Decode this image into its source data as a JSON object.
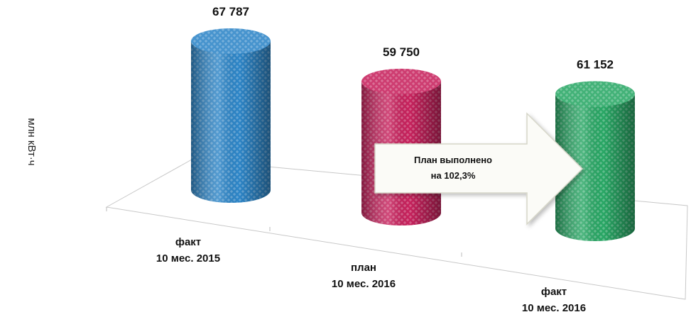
{
  "chart_data": {
    "type": "bar",
    "style": "3d-cylinder",
    "ylabel": "млн кВт·ч",
    "categories": [
      [
        "факт",
        "10 мес.  2015"
      ],
      [
        "план",
        "10 мес.  2016"
      ],
      [
        "факт",
        "10 мес.  2016"
      ]
    ],
    "values": [
      67787,
      59750,
      61152
    ],
    "value_labels": [
      "67 787",
      "59 750",
      "61 152"
    ],
    "colors": [
      "#2e86c8",
      "#c8235e",
      "#2aa866"
    ],
    "annotation": [
      "План выполнено",
      "на 102,3%"
    ],
    "grid": false
  }
}
